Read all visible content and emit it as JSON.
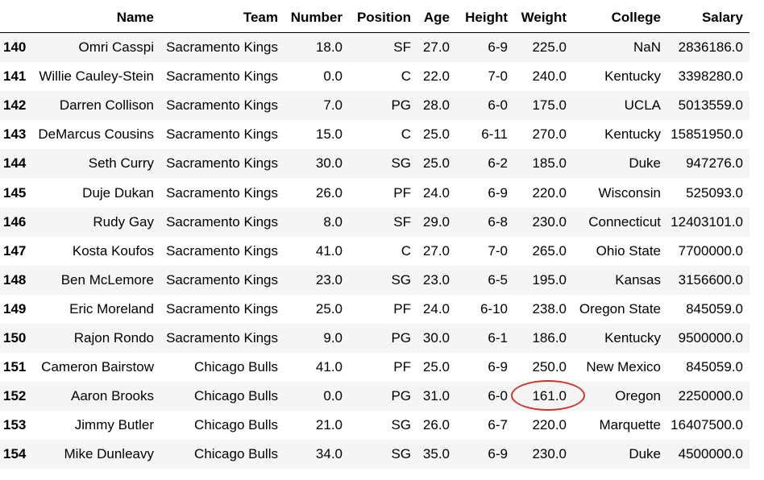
{
  "columns": [
    "",
    "Name",
    "Team",
    "Number",
    "Position",
    "Age",
    "Height",
    "Weight",
    "College",
    "Salary"
  ],
  "rows": [
    {
      "index": "140",
      "cells": [
        "Omri Casspi",
        "Sacramento Kings",
        "18.0",
        "SF",
        "27.0",
        "6-9",
        "225.0",
        "NaN",
        "2836186.0"
      ]
    },
    {
      "index": "141",
      "cells": [
        "Willie Cauley-Stein",
        "Sacramento Kings",
        "0.0",
        "C",
        "22.0",
        "7-0",
        "240.0",
        "Kentucky",
        "3398280.0"
      ]
    },
    {
      "index": "142",
      "cells": [
        "Darren Collison",
        "Sacramento Kings",
        "7.0",
        "PG",
        "28.0",
        "6-0",
        "175.0",
        "UCLA",
        "5013559.0"
      ]
    },
    {
      "index": "143",
      "cells": [
        "DeMarcus Cousins",
        "Sacramento Kings",
        "15.0",
        "C",
        "25.0",
        "6-11",
        "270.0",
        "Kentucky",
        "15851950.0"
      ]
    },
    {
      "index": "144",
      "cells": [
        "Seth Curry",
        "Sacramento Kings",
        "30.0",
        "SG",
        "25.0",
        "6-2",
        "185.0",
        "Duke",
        "947276.0"
      ]
    },
    {
      "index": "145",
      "cells": [
        "Duje Dukan",
        "Sacramento Kings",
        "26.0",
        "PF",
        "24.0",
        "6-9",
        "220.0",
        "Wisconsin",
        "525093.0"
      ]
    },
    {
      "index": "146",
      "cells": [
        "Rudy Gay",
        "Sacramento Kings",
        "8.0",
        "SF",
        "29.0",
        "6-8",
        "230.0",
        "Connecticut",
        "12403101.0"
      ]
    },
    {
      "index": "147",
      "cells": [
        "Kosta Koufos",
        "Sacramento Kings",
        "41.0",
        "C",
        "27.0",
        "7-0",
        "265.0",
        "Ohio State",
        "7700000.0"
      ]
    },
    {
      "index": "148",
      "cells": [
        "Ben McLemore",
        "Sacramento Kings",
        "23.0",
        "SG",
        "23.0",
        "6-5",
        "195.0",
        "Kansas",
        "3156600.0"
      ]
    },
    {
      "index": "149",
      "cells": [
        "Eric Moreland",
        "Sacramento Kings",
        "25.0",
        "PF",
        "24.0",
        "6-10",
        "238.0",
        "Oregon State",
        "845059.0"
      ]
    },
    {
      "index": "150",
      "cells": [
        "Rajon Rondo",
        "Sacramento Kings",
        "9.0",
        "PG",
        "30.0",
        "6-1",
        "186.0",
        "Kentucky",
        "9500000.0"
      ]
    },
    {
      "index": "151",
      "cells": [
        "Cameron Bairstow",
        "Chicago Bulls",
        "41.0",
        "PF",
        "25.0",
        "6-9",
        "250.0",
        "New Mexico",
        "845059.0"
      ]
    },
    {
      "index": "152",
      "cells": [
        "Aaron Brooks",
        "Chicago Bulls",
        "0.0",
        "PG",
        "31.0",
        "6-0",
        "161.0",
        "Oregon",
        "2250000.0"
      ]
    },
    {
      "index": "153",
      "cells": [
        "Jimmy Butler",
        "Chicago Bulls",
        "21.0",
        "SG",
        "26.0",
        "6-7",
        "220.0",
        "Marquette",
        "16407500.0"
      ]
    },
    {
      "index": "154",
      "cells": [
        "Mike Dunleavy",
        "Chicago Bulls",
        "34.0",
        "SG",
        "35.0",
        "6-9",
        "230.0",
        "Duke",
        "4500000.0"
      ]
    }
  ],
  "highlight": {
    "row": 12,
    "col": 6,
    "color": "#d0312d"
  }
}
